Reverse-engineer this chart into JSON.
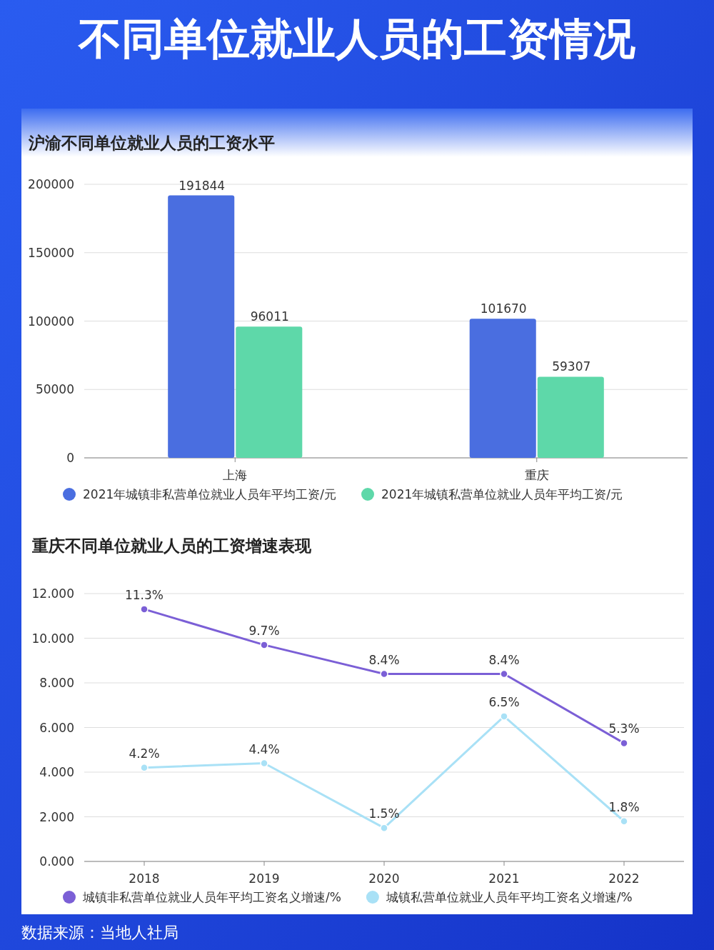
{
  "chart_data": [
    {
      "type": "bar",
      "title": "不同单位就业人员的工资情况",
      "subtitle": "沪渝不同单位就业人员的工资水平",
      "categories": [
        "上海",
        "重庆"
      ],
      "series": [
        {
          "name": "2021年城镇非私营单位就业人员年平均工资/元",
          "color": "#4a6ee0",
          "values": [
            191844,
            101670
          ]
        },
        {
          "name": "2021年城镇私营单位就业人员年平均工资/元",
          "color": "#5ed8a9",
          "values": [
            96011,
            59307
          ]
        }
      ],
      "ylim": [
        0,
        200000
      ],
      "yticks": [
        0,
        50000,
        100000,
        150000,
        200000
      ],
      "grid": "y",
      "legend": "bottom",
      "data_labels": true
    },
    {
      "type": "line",
      "title": "重庆不同单位就业人员的工资增速表现",
      "categories": [
        "2018",
        "2019",
        "2020",
        "2021",
        "2022"
      ],
      "series": [
        {
          "name": "城镇非私营单位就业人员年平均工资名义增速/%",
          "color": "#7b5fd6",
          "values": [
            11.3,
            9.7,
            8.4,
            8.4,
            5.3
          ],
          "value_labels": [
            "11.3%",
            "9.7%",
            "8.4%",
            "8.4%",
            "5.3%"
          ]
        },
        {
          "name": "城镇私营单位就业人员年平均工资名义增速/%",
          "color": "#a9e1f6",
          "values": [
            4.2,
            4.4,
            1.5,
            6.5,
            1.8
          ],
          "value_labels": [
            "4.2%",
            "4.4%",
            "1.5%",
            "6.5%",
            "1.8%"
          ]
        }
      ],
      "ylim": [
        0,
        12
      ],
      "yticks": [
        {
          "value": 0,
          "label": "0.000"
        },
        {
          "value": 2,
          "label": "2.000"
        },
        {
          "value": 4,
          "label": "4.000"
        },
        {
          "value": 6,
          "label": "6.000"
        },
        {
          "value": 8,
          "label": "8.000"
        },
        {
          "value": 10,
          "label": "10.000"
        },
        {
          "value": 12,
          "label": "12.000"
        }
      ],
      "grid": "y",
      "legend": "bottom",
      "marker": "circle",
      "line_style": "solid",
      "annotations": [
        "数据来源：当地人社局"
      ]
    }
  ]
}
